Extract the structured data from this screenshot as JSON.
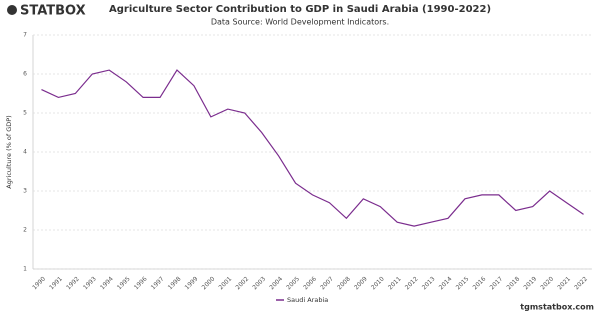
{
  "brand": "STATBOX",
  "footer": "tgmstatbox.com",
  "chart_data": {
    "type": "line",
    "title": "Agriculture Sector Contribution to GDP in Saudi Arabia (1990-2022)",
    "subtitle": "Data Source: World Development Indicators.",
    "y_label": "Agriculture (% of GDP)",
    "categories": [
      "1990",
      "1991",
      "1992",
      "1993",
      "1994",
      "1995",
      "1996",
      "1997",
      "1998",
      "1999",
      "2000",
      "2001",
      "2002",
      "2003",
      "2004",
      "2005",
      "2006",
      "2007",
      "2008",
      "2009",
      "2010",
      "2011",
      "2012",
      "2013",
      "2014",
      "2015",
      "2016",
      "2017",
      "2018",
      "2019",
      "2020",
      "2021",
      "2022"
    ],
    "series": [
      {
        "name": "Saudi Arabia",
        "color": "#7b2d8e",
        "values": [
          5.6,
          5.4,
          5.5,
          6.0,
          6.1,
          5.8,
          5.4,
          5.4,
          6.1,
          5.7,
          4.9,
          5.1,
          5.0,
          4.5,
          3.9,
          3.2,
          2.9,
          2.7,
          2.3,
          2.8,
          2.6,
          2.2,
          2.1,
          2.2,
          2.3,
          2.8,
          2.9,
          2.9,
          2.5,
          2.6,
          3.0,
          2.7,
          2.4
        ]
      }
    ],
    "ylim": [
      1,
      7
    ],
    "yticks": [
      1,
      2,
      3,
      4,
      5,
      6,
      7
    ],
    "grid": true,
    "legend": "bottom"
  }
}
